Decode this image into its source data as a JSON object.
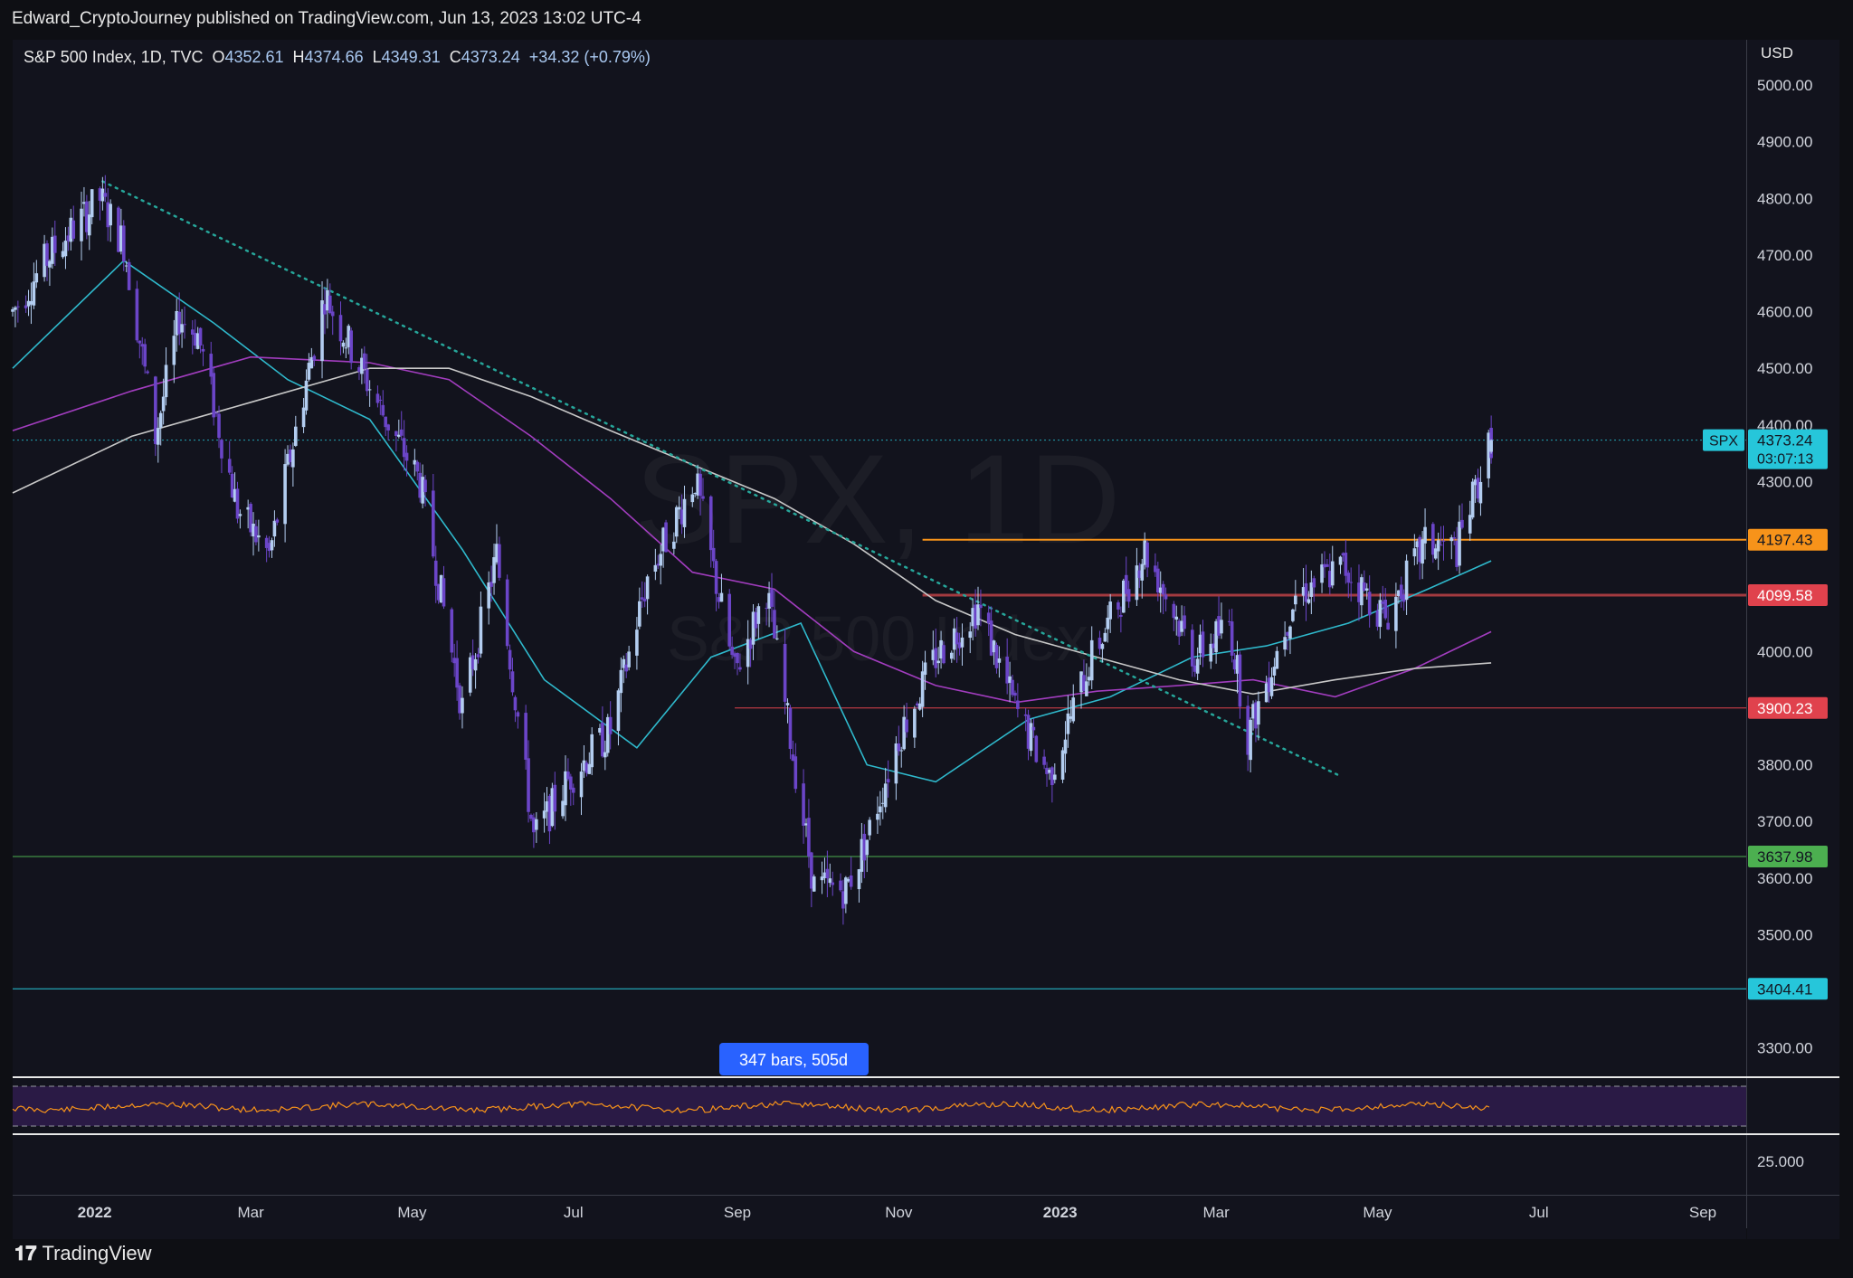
{
  "header": {
    "publisher": "Edward_CryptoJourney published on TradingView.com, Jun 13, 2023 13:02 UTC-4"
  },
  "legend": {
    "symbol": "S&P 500 Index, 1D, TVC",
    "o_label": "O",
    "o_value": "4352.61",
    "h_label": "H",
    "h_value": "4374.66",
    "l_label": "L",
    "l_value": "4349.31",
    "c_label": "C",
    "c_value": "4373.24",
    "change": "+34.32 (+0.79%)"
  },
  "watermark": {
    "main": "SPX, 1D",
    "sub": "S&P 500 Index"
  },
  "price_axis": {
    "currency": "USD"
  },
  "price_tag": {
    "symbol": "SPX",
    "price": "4373.24",
    "countdown": "03:07:13"
  },
  "measure_label": "347 bars, 505d",
  "rsi_axis_label": "25.000",
  "footer": {
    "brand": "TradingView"
  },
  "colors": {
    "background": "#12131d",
    "bull_candle": "#b3cdf0",
    "bear_candle": "#6b45c8",
    "ma_short": "#2fb9cc",
    "ma_mid": "#a23dbf",
    "ma_long": "#c8c8c8",
    "trendline": "#26a69a",
    "level_orange": "#f7931a",
    "level_red": "#e0424d",
    "level_darkred": "#a33a3f",
    "level_green": "#4caf50",
    "level_cyan": "#26c6da",
    "rsi_line": "#f7931a",
    "rsi_band": "#2a1a45"
  },
  "chart_data": {
    "type": "candlestick",
    "title": "S&P 500 Index, 1D, TVC",
    "y_range": [
      3250,
      5080
    ],
    "y_ticks": [
      3300,
      3400,
      3500,
      3600,
      3700,
      3800,
      3900,
      4000,
      4100,
      4200,
      4300,
      4400,
      4500,
      4600,
      4700,
      4800,
      4900,
      5000
    ],
    "y_tick_labels": [
      "3300.00",
      "",
      "3500.00",
      "3600.00",
      "3700.00",
      "3800.00",
      "",
      "4000.00",
      "",
      "",
      "4300.00",
      "4400.00",
      "4500.00",
      "4600.00",
      "4700.00",
      "4800.00",
      "4900.00",
      "5000.00"
    ],
    "x_labels": [
      {
        "label": "2022",
        "date": "2022-01-01",
        "bold": true
      },
      {
        "label": "Mar",
        "date": "2022-03-01"
      },
      {
        "label": "May",
        "date": "2022-05-01"
      },
      {
        "label": "Jul",
        "date": "2022-07-01"
      },
      {
        "label": "Sep",
        "date": "2022-09-01"
      },
      {
        "label": "Nov",
        "date": "2022-11-01"
      },
      {
        "label": "2023",
        "date": "2023-01-01",
        "bold": true
      },
      {
        "label": "Mar",
        "date": "2023-03-01"
      },
      {
        "label": "May",
        "date": "2023-05-01"
      },
      {
        "label": "Jul",
        "date": "2023-07-01"
      },
      {
        "label": "Sep",
        "date": "2023-09-01"
      }
    ],
    "price_path": [
      [
        "2021-12-01",
        4600
      ],
      [
        "2021-12-15",
        4700
      ],
      [
        "2022-01-03",
        4800
      ],
      [
        "2022-01-12",
        4720
      ],
      [
        "2022-01-24",
        4380
      ],
      [
        "2022-02-02",
        4590
      ],
      [
        "2022-02-09",
        4560
      ],
      [
        "2022-02-24",
        4250
      ],
      [
        "2022-03-08",
        4170
      ],
      [
        "2022-03-29",
        4630
      ],
      [
        "2022-04-20",
        4420
      ],
      [
        "2022-05-04",
        4300
      ],
      [
        "2022-05-20",
        3900
      ],
      [
        "2022-06-02",
        4170
      ],
      [
        "2022-06-16",
        3670
      ],
      [
        "2022-06-30",
        3780
      ],
      [
        "2022-07-15",
        3860
      ],
      [
        "2022-07-29",
        4130
      ],
      [
        "2022-08-16",
        4305
      ],
      [
        "2022-08-31",
        3960
      ],
      [
        "2022-09-12",
        4110
      ],
      [
        "2022-09-30",
        3585
      ],
      [
        "2022-10-12",
        3580
      ],
      [
        "2022-10-20",
        3670
      ],
      [
        "2022-11-01",
        3850
      ],
      [
        "2022-11-15",
        3990
      ],
      [
        "2022-12-01",
        4080
      ],
      [
        "2022-12-15",
        3900
      ],
      [
        "2022-12-28",
        3780
      ],
      [
        "2023-01-12",
        3980
      ],
      [
        "2023-02-02",
        4180
      ],
      [
        "2023-02-21",
        3990
      ],
      [
        "2023-03-06",
        4050
      ],
      [
        "2023-03-13",
        3850
      ],
      [
        "2023-03-31",
        4100
      ],
      [
        "2023-04-18",
        4150
      ],
      [
        "2023-05-04",
        4060
      ],
      [
        "2023-05-19",
        4190
      ],
      [
        "2023-05-31",
        4180
      ],
      [
        "2023-06-13",
        4373
      ]
    ],
    "last_candle": {
      "date": "2023-06-13",
      "open": 4352.61,
      "high": 4374.66,
      "low": 4349.31,
      "close": 4373.24
    },
    "moving_averages": [
      {
        "name": "MA short",
        "color": "#2fb9cc",
        "points": [
          [
            "2021-12-01",
            4500
          ],
          [
            "2022-01-12",
            4690
          ],
          [
            "2022-02-15",
            4580
          ],
          [
            "2022-03-15",
            4480
          ],
          [
            "2022-04-15",
            4410
          ],
          [
            "2022-05-20",
            4180
          ],
          [
            "2022-06-20",
            3950
          ],
          [
            "2022-07-25",
            3830
          ],
          [
            "2022-08-22",
            3990
          ],
          [
            "2022-09-25",
            4050
          ],
          [
            "2022-10-20",
            3800
          ],
          [
            "2022-11-15",
            3770
          ],
          [
            "2022-12-20",
            3880
          ],
          [
            "2023-01-20",
            3920
          ],
          [
            "2023-02-20",
            3990
          ],
          [
            "2023-03-20",
            4010
          ],
          [
            "2023-04-20",
            4050
          ],
          [
            "2023-05-20",
            4110
          ],
          [
            "2023-06-13",
            4160
          ]
        ]
      },
      {
        "name": "MA mid",
        "color": "#a23dbf",
        "points": [
          [
            "2021-12-01",
            4390
          ],
          [
            "2022-01-15",
            4460
          ],
          [
            "2022-03-01",
            4520
          ],
          [
            "2022-04-15",
            4510
          ],
          [
            "2022-05-15",
            4480
          ],
          [
            "2022-06-15",
            4380
          ],
          [
            "2022-07-15",
            4270
          ],
          [
            "2022-08-15",
            4140
          ],
          [
            "2022-09-15",
            4110
          ],
          [
            "2022-10-15",
            4000
          ],
          [
            "2022-11-15",
            3940
          ],
          [
            "2022-12-15",
            3910
          ],
          [
            "2023-01-15",
            3930
          ],
          [
            "2023-02-15",
            3940
          ],
          [
            "2023-03-15",
            3950
          ],
          [
            "2023-04-15",
            3920
          ],
          [
            "2023-05-15",
            3970
          ],
          [
            "2023-06-13",
            4035
          ]
        ]
      },
      {
        "name": "MA long",
        "color": "#c8c8c8",
        "points": [
          [
            "2021-12-01",
            4280
          ],
          [
            "2022-01-15",
            4380
          ],
          [
            "2022-03-01",
            4440
          ],
          [
            "2022-04-15",
            4500
          ],
          [
            "2022-05-15",
            4500
          ],
          [
            "2022-06-15",
            4450
          ],
          [
            "2022-07-15",
            4390
          ],
          [
            "2022-08-15",
            4330
          ],
          [
            "2022-09-15",
            4270
          ],
          [
            "2022-10-15",
            4190
          ],
          [
            "2022-11-15",
            4090
          ],
          [
            "2022-12-15",
            4030
          ],
          [
            "2023-01-15",
            3990
          ],
          [
            "2023-02-15",
            3950
          ],
          [
            "2023-03-15",
            3925
          ],
          [
            "2023-04-15",
            3950
          ],
          [
            "2023-05-15",
            3970
          ],
          [
            "2023-06-13",
            3980
          ]
        ]
      }
    ],
    "trendline": {
      "from": [
        "2022-01-04",
        4830
      ],
      "to": [
        "2023-04-17",
        3780
      ],
      "style": "dotted"
    },
    "horizontal_levels": [
      {
        "value": 4197.43,
        "label": "4197.43",
        "color": "#f7931a",
        "from": "2022-11-10",
        "width": 2
      },
      {
        "value": 4099.58,
        "label": "4099.58",
        "color": "#a33a3f",
        "from": "2022-11-10",
        "width": 3
      },
      {
        "value": 3900.23,
        "label": "3900.23",
        "color": "#e0424d",
        "from": "2022-08-31",
        "width": 1
      },
      {
        "value": 3637.98,
        "label": "3637.98",
        "color": "#4caf50",
        "from": "2021-12-01",
        "width": 1
      },
      {
        "value": 3404.41,
        "label": "3404.41",
        "color": "#26c6da",
        "from": "2021-12-01",
        "width": 1
      }
    ],
    "last_price_line": 4373.24
  }
}
